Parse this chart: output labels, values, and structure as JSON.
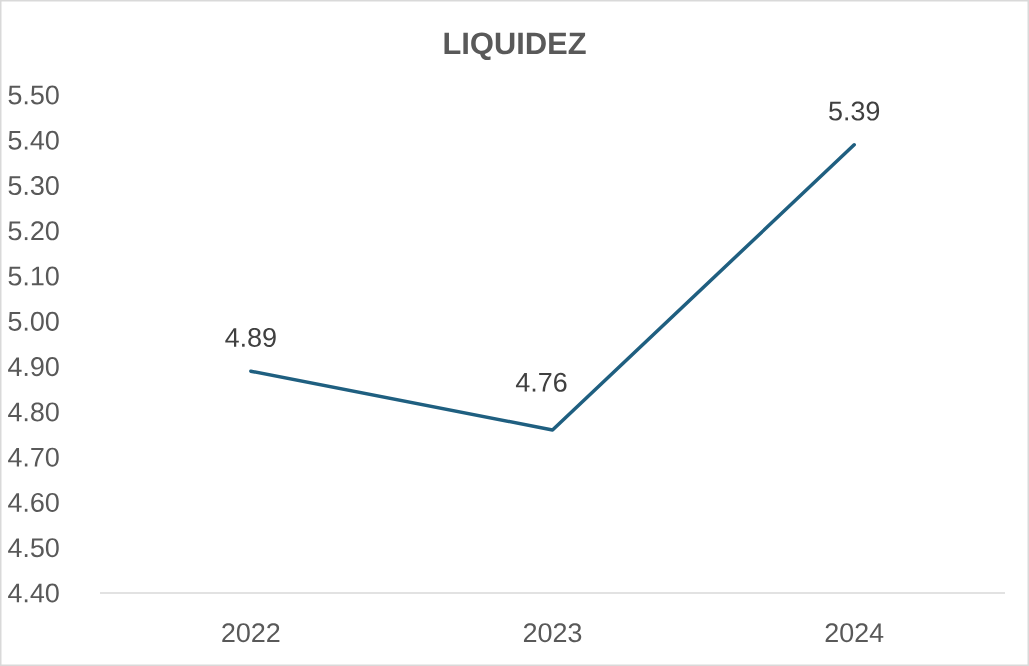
{
  "chart_data": {
    "type": "line",
    "title": "LIQUIDEZ",
    "categories": [
      "2022",
      "2023",
      "2024"
    ],
    "series": [
      {
        "color": "#1f5f80",
        "values": [
          4.89,
          4.76,
          5.39
        ]
      }
    ],
    "ylim": [
      4.4,
      5.5
    ],
    "yticks": [
      {
        "value": 4.4,
        "label": "4.40"
      },
      {
        "value": 4.5,
        "label": "4.50"
      },
      {
        "value": 4.6,
        "label": "4.60"
      },
      {
        "value": 4.7,
        "label": "4.70"
      },
      {
        "value": 4.8,
        "label": "4.80"
      },
      {
        "value": 4.9,
        "label": "4.90"
      },
      {
        "value": 5.0,
        "label": "5.00"
      },
      {
        "value": 5.1,
        "label": "5.10"
      },
      {
        "value": 5.2,
        "label": "5.20"
      },
      {
        "value": 5.3,
        "label": "5.30"
      },
      {
        "value": 5.4,
        "label": "5.40"
      },
      {
        "value": 5.5,
        "label": "5.50"
      }
    ],
    "marker": "none",
    "line_style": "solid",
    "data_labels": true
  }
}
